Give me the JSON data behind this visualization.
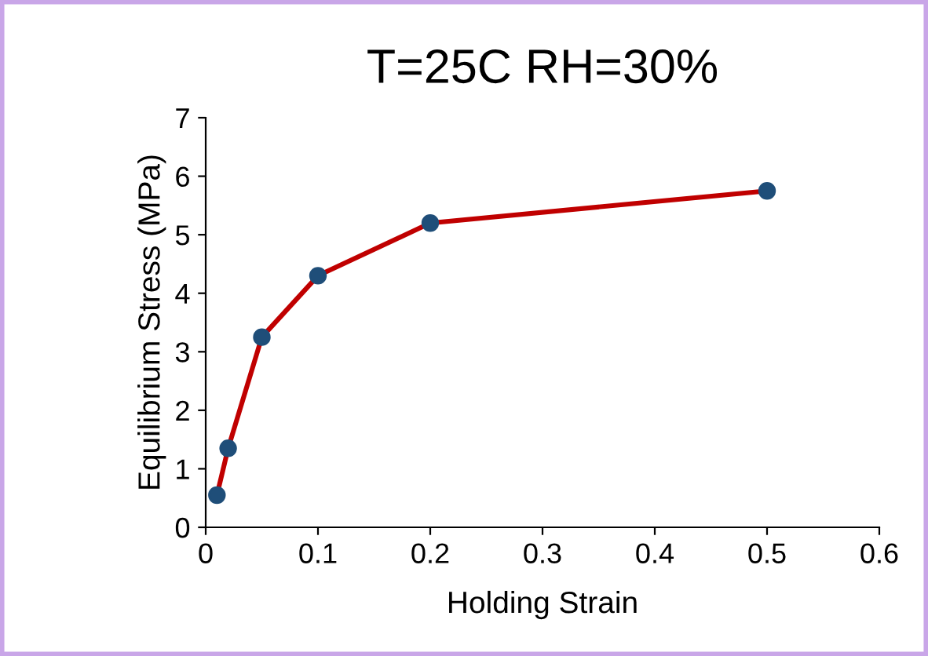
{
  "chart_data": {
    "type": "line",
    "title": "T=25C RH=30%",
    "xlabel": "Holding Strain",
    "ylabel": "Equilibrium Stress (MPa)",
    "x": [
      0.01,
      0.02,
      0.05,
      0.1,
      0.2,
      0.5
    ],
    "series": [
      {
        "color": "#c00000",
        "colors": [
          "#1f4e79",
          "#1f4e79",
          "#1f4e79",
          "#1f4e79",
          "#1f4e79",
          "#1f4e79"
        ],
        "values": [
          0.55,
          1.35,
          3.25,
          4.3,
          5.2,
          5.75
        ]
      }
    ],
    "xlim": [
      0,
      0.6
    ],
    "xticks": [
      0,
      0.1,
      0.2,
      0.3,
      0.4,
      0.5,
      0.6
    ],
    "ylim": [
      0,
      7
    ],
    "yticks": [
      0,
      1,
      2,
      3,
      4,
      5,
      6,
      7
    ],
    "marker": "circle",
    "line_style": "solid",
    "grid": false
  }
}
